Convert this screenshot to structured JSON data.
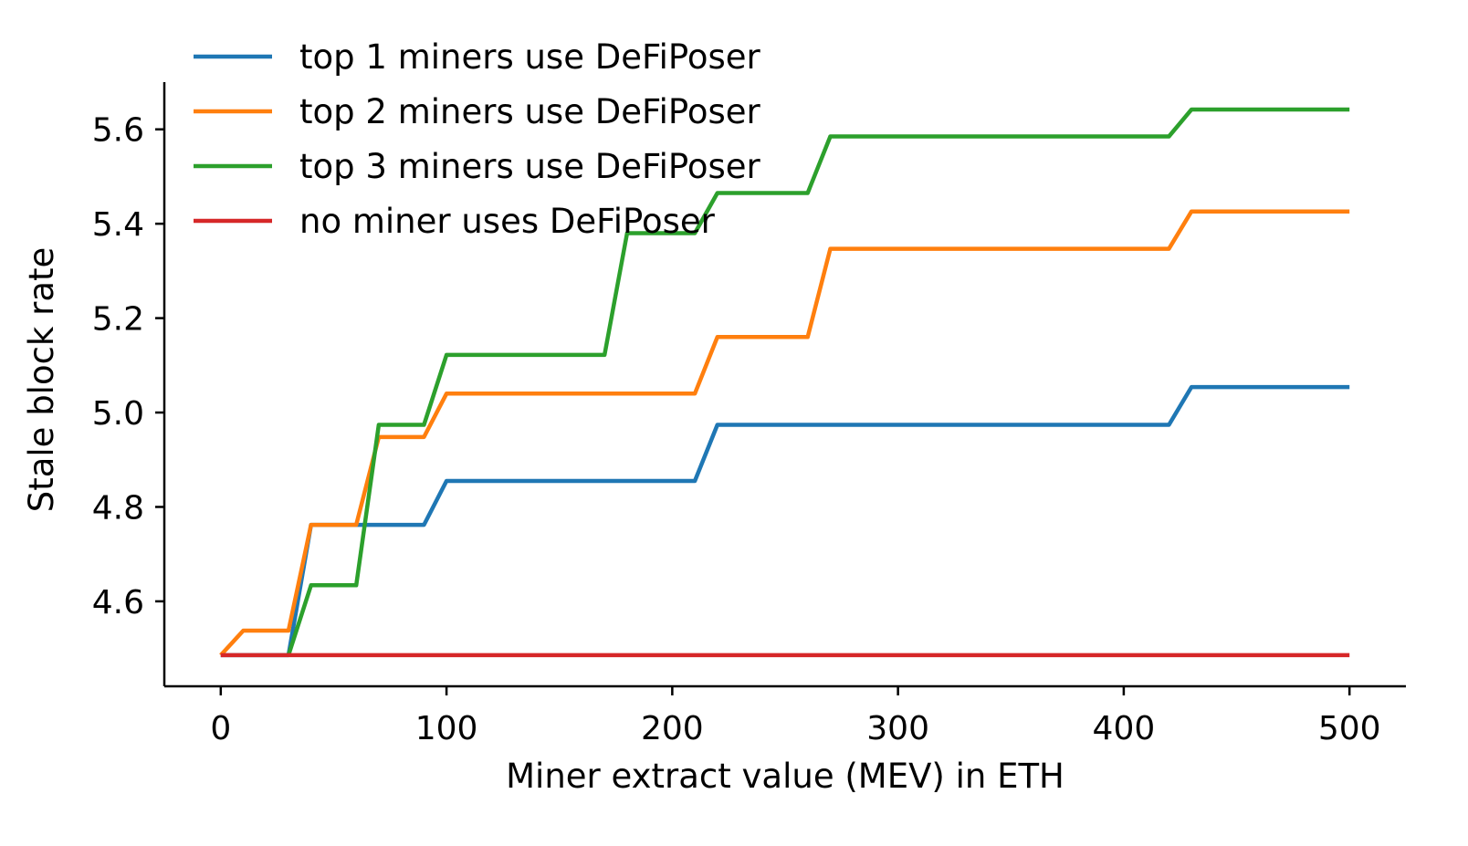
{
  "chart_data": {
    "type": "line",
    "title": "",
    "xlabel": "Miner extract value (MEV) in ETH",
    "ylabel": "Stale block rate",
    "xlim": [
      -25,
      525
    ],
    "ylim": [
      4.42,
      5.7
    ],
    "xticks": [
      0,
      100,
      200,
      300,
      400,
      500
    ],
    "yticks": [
      4.6,
      4.8,
      5.0,
      5.2,
      5.4,
      5.6
    ],
    "xtick_labels": [
      "0",
      "100",
      "200",
      "300",
      "400",
      "500"
    ],
    "ytick_labels": [
      "4.6",
      "4.8",
      "5.0",
      "5.2",
      "5.4",
      "5.6"
    ],
    "grid": false,
    "legend_position": "top-left",
    "series": [
      {
        "name": "top 1 miners use DeFiPoser",
        "color": "#1f77b4",
        "points": [
          [
            0,
            4.486
          ],
          [
            30,
            4.486
          ],
          [
            40,
            4.762
          ],
          [
            90,
            4.762
          ],
          [
            100,
            4.855
          ],
          [
            210,
            4.855
          ],
          [
            220,
            4.974
          ],
          [
            420,
            4.974
          ],
          [
            430,
            5.054
          ],
          [
            500,
            5.054
          ]
        ]
      },
      {
        "name": "top 2 miners use DeFiPoser",
        "color": "#ff7f0e",
        "points": [
          [
            0,
            4.486
          ],
          [
            10,
            4.538
          ],
          [
            30,
            4.538
          ],
          [
            40,
            4.762
          ],
          [
            60,
            4.762
          ],
          [
            70,
            4.948
          ],
          [
            90,
            4.948
          ],
          [
            100,
            5.04
          ],
          [
            210,
            5.04
          ],
          [
            220,
            5.16
          ],
          [
            260,
            5.16
          ],
          [
            270,
            5.347
          ],
          [
            420,
            5.347
          ],
          [
            430,
            5.426
          ],
          [
            500,
            5.426
          ]
        ]
      },
      {
        "name": "top 3 miners use DeFiPoser",
        "color": "#2ca02c",
        "points": [
          [
            30,
            4.486
          ],
          [
            40,
            4.634
          ],
          [
            60,
            4.634
          ],
          [
            70,
            4.974
          ],
          [
            90,
            4.974
          ],
          [
            100,
            5.122
          ],
          [
            170,
            5.122
          ],
          [
            180,
            5.38
          ],
          [
            210,
            5.38
          ],
          [
            220,
            5.465
          ],
          [
            260,
            5.465
          ],
          [
            270,
            5.585
          ],
          [
            420,
            5.585
          ],
          [
            430,
            5.642
          ],
          [
            500,
            5.642
          ]
        ]
      },
      {
        "name": "no miner uses DeFiPoser",
        "color": "#d62728",
        "points": [
          [
            0,
            4.486
          ],
          [
            500,
            4.486
          ]
        ]
      }
    ]
  }
}
